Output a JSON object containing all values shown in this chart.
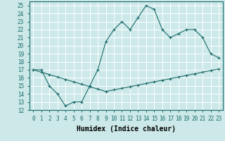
{
  "xlabel": "Humidex (Indice chaleur)",
  "ylabel": "",
  "bg_color": "#cce8e8",
  "line_color": "#1a6b6b",
  "grid_color": "#ffffff",
  "x_ticks": [
    0,
    1,
    2,
    3,
    4,
    5,
    6,
    7,
    8,
    9,
    10,
    11,
    12,
    13,
    14,
    15,
    16,
    17,
    18,
    19,
    20,
    21,
    22,
    23
  ],
  "ylim": [
    12,
    25.5
  ],
  "xlim": [
    -0.5,
    23.5
  ],
  "line1_x": [
    0,
    1,
    2,
    3,
    4,
    5,
    6,
    7,
    8,
    9,
    10,
    11,
    12,
    13,
    14,
    15,
    16,
    17,
    18,
    19,
    20,
    21,
    22,
    23
  ],
  "line1_y": [
    17.0,
    17.0,
    15.0,
    14.0,
    12.5,
    13.0,
    13.0,
    15.0,
    17.0,
    20.5,
    22.0,
    23.0,
    22.0,
    23.5,
    25.0,
    24.5,
    22.0,
    21.0,
    21.5,
    22.0,
    22.0,
    21.0,
    19.0,
    18.5
  ],
  "line2_x": [
    0,
    1,
    2,
    3,
    4,
    5,
    6,
    7,
    8,
    9,
    10,
    11,
    12,
    13,
    14,
    15,
    16,
    17,
    18,
    19,
    20,
    21,
    22,
    23
  ],
  "line2_y": [
    17.0,
    16.7,
    16.4,
    16.1,
    15.8,
    15.5,
    15.2,
    14.9,
    14.6,
    14.3,
    14.5,
    14.7,
    14.9,
    15.1,
    15.3,
    15.5,
    15.7,
    15.9,
    16.1,
    16.3,
    16.5,
    16.7,
    16.9,
    17.1
  ],
  "yticks": [
    12,
    13,
    14,
    15,
    16,
    17,
    18,
    19,
    20,
    21,
    22,
    23,
    24,
    25
  ],
  "tick_fontsize": 5.5,
  "label_fontsize": 7
}
